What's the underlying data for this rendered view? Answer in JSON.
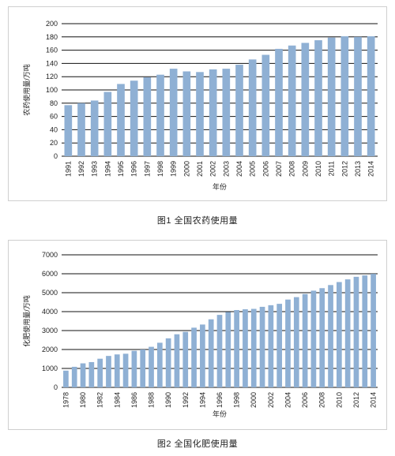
{
  "chart_data": [
    {
      "type": "bar",
      "title": "",
      "caption": "图1   全国农药使用量",
      "xlabel": "年份",
      "ylabel": "农药使用量/万吨",
      "ylim": [
        0,
        200
      ],
      "yticks": [
        0,
        20,
        40,
        60,
        80,
        100,
        120,
        140,
        160,
        180,
        200
      ],
      "grid": true,
      "bar_color": "#8fb0d4",
      "categories": [
        "1991",
        "1992",
        "1993",
        "1994",
        "1995",
        "1996",
        "1997",
        "1998",
        "1999",
        "2000",
        "2001",
        "2002",
        "2003",
        "2004",
        "2005",
        "2006",
        "2007",
        "2008",
        "2009",
        "2010",
        "2011",
        "2012",
        "2013",
        "2014"
      ],
      "values": [
        77,
        80,
        84,
        97,
        109,
        114,
        119,
        123,
        132,
        128,
        127,
        131,
        132,
        138,
        146,
        153,
        162,
        167,
        171,
        175,
        179,
        181,
        180,
        181
      ]
    },
    {
      "type": "bar",
      "title": "",
      "caption": "图2   全国化肥使用量",
      "xlabel": "年份",
      "ylabel": "化肥使用量/万吨",
      "ylim": [
        0,
        7000
      ],
      "yticks": [
        0,
        1000,
        2000,
        3000,
        4000,
        5000,
        6000,
        7000
      ],
      "grid": true,
      "bar_color": "#8fb0d4",
      "categories": [
        "1978",
        "1979",
        "1980",
        "1981",
        "1982",
        "1983",
        "1984",
        "1985",
        "1986",
        "1987",
        "1988",
        "1989",
        "1990",
        "1991",
        "1992",
        "1993",
        "1994",
        "1995",
        "1996",
        "1997",
        "1998",
        "1999",
        "2000",
        "2001",
        "2002",
        "2003",
        "2004",
        "2005",
        "2006",
        "2007",
        "2008",
        "2009",
        "2010",
        "2011",
        "2012",
        "2013",
        "2014"
      ],
      "xtick_labels": [
        "1978",
        "1980",
        "1982",
        "1984",
        "1986",
        "1988",
        "1990",
        "1992",
        "1994",
        "1996",
        "1998",
        "2000",
        "2002",
        "2004",
        "2006",
        "2008",
        "2010",
        "2012",
        "2014"
      ],
      "values": [
        884,
        1086,
        1269,
        1335,
        1513,
        1660,
        1740,
        1776,
        1931,
        1999,
        2142,
        2357,
        2590,
        2805,
        2930,
        3152,
        3318,
        3594,
        3828,
        3981,
        4084,
        4124,
        4146,
        4254,
        4339,
        4412,
        4637,
        4766,
        4928,
        5108,
        5239,
        5404,
        5562,
        5704,
        5839,
        5912,
        5996
      ]
    }
  ]
}
